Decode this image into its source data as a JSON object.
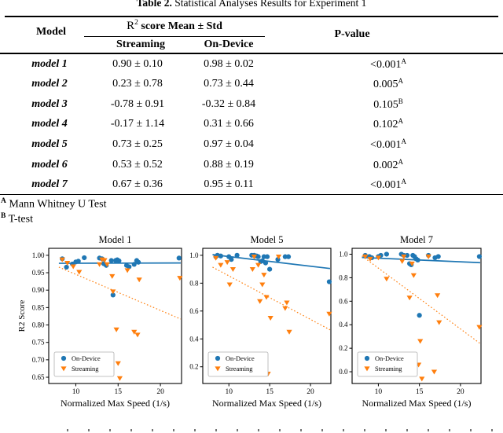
{
  "page": {
    "title_prefix": "Table 2.",
    "title_rest": " Statistical Analyses Results for Experiment 1"
  },
  "table": {
    "col_model": "Model",
    "r2_pre": "R",
    "r2_sup": "2",
    "r2_rest": " score Mean ± Std",
    "col_streaming": "Streaming",
    "col_ondevice": "On-Device",
    "col_pvalue": "P-value",
    "rows": [
      {
        "model": "model 1",
        "streaming": "0.90 ± 0.10",
        "ondevice": "0.98 ± 0.02",
        "pvalue": "<0.001",
        "pnote": "A"
      },
      {
        "model": "model 2",
        "streaming": "0.23 ± 0.78",
        "ondevice": "0.73 ± 0.44",
        "pvalue": "0.005",
        "pnote": "A"
      },
      {
        "model": "model 3",
        "streaming": "-0.78 ± 0.91",
        "ondevice": "-0.32 ± 0.84",
        "pvalue": "0.105",
        "pnote": "B"
      },
      {
        "model": "model 4",
        "streaming": "-0.17 ± 1.14",
        "ondevice": "0.31 ± 0.66",
        "pvalue": "0.102",
        "pnote": "A"
      },
      {
        "model": "model 5",
        "streaming": "0.73 ± 0.25",
        "ondevice": "0.97 ± 0.04",
        "pvalue": "<0.001",
        "pnote": "A"
      },
      {
        "model": "model 6",
        "streaming": "0.53 ± 0.52",
        "ondevice": "0.88 ± 0.19",
        "pvalue": "0.002",
        "pnote": "A"
      },
      {
        "model": "model 7",
        "streaming": "0.67 ± 0.36",
        "ondevice": "0.95 ± 0.11",
        "pvalue": "<0.001",
        "pnote": "A"
      }
    ],
    "footnotes": [
      {
        "sup": "A",
        "text": " Mann Whitney U Test"
      },
      {
        "sup": "B",
        "text": " T-test"
      }
    ]
  },
  "colors": {
    "on_device": "#1f77b4",
    "streaming": "#ff7f0e",
    "axis": "#000000",
    "legend_border": "#b0b0b0"
  },
  "chart_data": [
    {
      "type": "scatter",
      "title": "Model 1",
      "xlabel": "Normalized Max Speed (1/s)",
      "ylabel": "R2 Score",
      "xlim": [
        6.8,
        22.5
      ],
      "ylim": [
        0.632,
        1.02
      ],
      "xticks": [
        10,
        15,
        20
      ],
      "yticks": [
        1.0,
        0.95,
        0.9,
        0.85,
        0.8,
        0.75,
        0.7,
        0.65
      ],
      "ytick_labels": [
        "1.00",
        "0.95",
        "0.90",
        "0.85",
        "0.80",
        "0.75",
        "0.70",
        "0.65"
      ],
      "legend": {
        "position": "lower-left",
        "items": [
          {
            "label": "On-Device",
            "marker": "circle",
            "color": "#1f77b4"
          },
          {
            "label": "Streaming",
            "marker": "triangle-down",
            "color": "#ff7f0e"
          }
        ]
      },
      "series": [
        {
          "name": "On-Device",
          "marker": "circle",
          "color": "#1f77b4",
          "points": [
            [
              8.4,
              0.99
            ],
            [
              8.9,
              0.966
            ],
            [
              9.6,
              0.975
            ],
            [
              10.0,
              0.981
            ],
            [
              10.3,
              0.983
            ],
            [
              11.0,
              0.993
            ],
            [
              12.8,
              0.992
            ],
            [
              13.1,
              0.99
            ],
            [
              13.3,
              0.976
            ],
            [
              13.6,
              0.971
            ],
            [
              14.2,
              0.985
            ],
            [
              14.4,
              0.886
            ],
            [
              14.7,
              0.985
            ],
            [
              14.9,
              0.987
            ],
            [
              15.1,
              0.984
            ],
            [
              16.0,
              0.971
            ],
            [
              16.3,
              0.967
            ],
            [
              16.9,
              0.974
            ],
            [
              17.2,
              0.985
            ],
            [
              17.4,
              0.98
            ],
            [
              22.2,
              0.992
            ]
          ],
          "trend": {
            "style": "solid",
            "from": [
              8.0,
              0.977
            ],
            "to": [
              22.4,
              0.978
            ]
          }
        },
        {
          "name": "Streaming",
          "marker": "triangle-down",
          "color": "#ff7f0e",
          "points": [
            [
              8.4,
              0.988
            ],
            [
              9.0,
              0.978
            ],
            [
              9.7,
              0.968
            ],
            [
              10.4,
              0.952
            ],
            [
              12.8,
              0.974
            ],
            [
              13.1,
              0.988
            ],
            [
              13.4,
              0.986
            ],
            [
              13.7,
              0.974
            ],
            [
              14.3,
              0.94
            ],
            [
              14.4,
              0.896
            ],
            [
              14.8,
              0.787
            ],
            [
              15.0,
              0.69
            ],
            [
              15.2,
              0.647
            ],
            [
              16.1,
              0.957
            ],
            [
              16.9,
              0.78
            ],
            [
              17.3,
              0.772
            ],
            [
              17.5,
              0.93
            ],
            [
              22.3,
              0.935
            ]
          ],
          "trend": {
            "style": "dotted",
            "from": [
              8.0,
              0.966
            ],
            "to": [
              22.4,
              0.817
            ]
          }
        }
      ]
    },
    {
      "type": "scatter",
      "title": "Model 5",
      "xlabel": "Normalized Max Speed (1/s)",
      "ylabel": "",
      "xlim": [
        6.8,
        22.5
      ],
      "ylim": [
        0.08,
        1.05
      ],
      "xticks": [
        10,
        15,
        20
      ],
      "yticks": [
        1.0,
        0.8,
        0.6,
        0.4,
        0.2
      ],
      "ytick_labels": [
        "1.0",
        "0.8",
        "0.6",
        "0.4",
        "0.2"
      ],
      "legend": {
        "position": "lower-left",
        "items": [
          {
            "label": "On-Device",
            "marker": "circle",
            "color": "#1f77b4"
          },
          {
            "label": "Streaming",
            "marker": "triangle-down",
            "color": "#ff7f0e"
          }
        ]
      },
      "series": [
        {
          "name": "On-Device",
          "marker": "circle",
          "color": "#1f77b4",
          "points": [
            [
              8.4,
              0.99
            ],
            [
              8.6,
              1.0
            ],
            [
              9.0,
              0.995
            ],
            [
              10.0,
              0.99
            ],
            [
              10.3,
              0.97
            ],
            [
              11.0,
              1.0
            ],
            [
              12.8,
              1.0
            ],
            [
              13.1,
              1.0
            ],
            [
              13.4,
              0.995
            ],
            [
              13.6,
              0.99
            ],
            [
              13.9,
              0.955
            ],
            [
              14.1,
              0.96
            ],
            [
              14.3,
              0.99
            ],
            [
              14.5,
              0.945
            ],
            [
              14.7,
              0.99
            ],
            [
              15.0,
              0.9
            ],
            [
              16.0,
              0.97
            ],
            [
              16.9,
              0.99
            ],
            [
              17.3,
              0.99
            ],
            [
              22.3,
              0.81
            ]
          ],
          "trend": {
            "style": "solid",
            "from": [
              8.0,
              1.005
            ],
            "to": [
              22.4,
              0.905
            ]
          }
        },
        {
          "name": "Streaming",
          "marker": "triangle-down",
          "color": "#ff7f0e",
          "points": [
            [
              8.4,
              0.98
            ],
            [
              9.0,
              0.93
            ],
            [
              9.8,
              0.95
            ],
            [
              10.1,
              0.79
            ],
            [
              10.5,
              0.9
            ],
            [
              12.9,
              0.9
            ],
            [
              13.1,
              0.99
            ],
            [
              13.6,
              0.93
            ],
            [
              13.8,
              0.67
            ],
            [
              14.1,
              0.79
            ],
            [
              14.3,
              0.86
            ],
            [
              14.6,
              0.7
            ],
            [
              14.8,
              0.15
            ],
            [
              15.1,
              0.55
            ],
            [
              16.1,
              0.99
            ],
            [
              16.9,
              0.62
            ],
            [
              17.1,
              0.66
            ],
            [
              17.4,
              0.45
            ],
            [
              22.3,
              0.58
            ]
          ],
          "trend": {
            "style": "dotted",
            "from": [
              8.0,
              0.915
            ],
            "to": [
              22.4,
              0.465
            ]
          }
        }
      ]
    },
    {
      "type": "scatter",
      "title": "Model 7",
      "xlabel": "Normalized Max Speed (1/s)",
      "ylabel": "",
      "xlim": [
        6.8,
        22.5
      ],
      "ylim": [
        -0.1,
        1.05
      ],
      "xticks": [
        10,
        15,
        20
      ],
      "yticks": [
        1.0,
        0.8,
        0.6,
        0.4,
        0.2,
        0.0
      ],
      "ytick_labels": [
        "1.0",
        "0.8",
        "0.6",
        "0.4",
        "0.2",
        "0.0"
      ],
      "legend": {
        "position": "lower-left",
        "items": [
          {
            "label": "On-Device",
            "marker": "circle",
            "color": "#1f77b4"
          },
          {
            "label": "Streaming",
            "marker": "triangle-down",
            "color": "#ff7f0e"
          }
        ]
      },
      "series": [
        {
          "name": "On-Device",
          "marker": "circle",
          "color": "#1f77b4",
          "points": [
            [
              8.4,
              0.99
            ],
            [
              8.9,
              0.98
            ],
            [
              9.2,
              0.97
            ],
            [
              10.0,
              0.98
            ],
            [
              10.3,
              0.99
            ],
            [
              11.0,
              1.0
            ],
            [
              12.8,
              1.0
            ],
            [
              13.1,
              0.99
            ],
            [
              13.5,
              0.99
            ],
            [
              13.8,
              0.92
            ],
            [
              14.0,
              0.91
            ],
            [
              14.2,
              0.99
            ],
            [
              14.4,
              0.98
            ],
            [
              14.6,
              0.96
            ],
            [
              14.8,
              0.95
            ],
            [
              15.0,
              0.48
            ],
            [
              16.1,
              0.99
            ],
            [
              16.9,
              0.97
            ],
            [
              17.3,
              0.98
            ],
            [
              22.3,
              0.98
            ]
          ],
          "trend": {
            "style": "solid",
            "from": [
              8.0,
              0.972
            ],
            "to": [
              22.4,
              0.928
            ]
          }
        },
        {
          "name": "Streaming",
          "marker": "triangle-down",
          "color": "#ff7f0e",
          "points": [
            [
              8.4,
              0.98
            ],
            [
              9.0,
              0.96
            ],
            [
              10.0,
              0.97
            ],
            [
              11.0,
              0.79
            ],
            [
              12.9,
              0.94
            ],
            [
              13.1,
              0.98
            ],
            [
              13.8,
              0.63
            ],
            [
              14.1,
              0.92
            ],
            [
              14.3,
              0.82
            ],
            [
              14.9,
              0.06
            ],
            [
              15.1,
              0.26
            ],
            [
              15.3,
              -0.06
            ],
            [
              16.1,
              0.98
            ],
            [
              16.8,
              0.0
            ],
            [
              17.2,
              0.65
            ],
            [
              17.4,
              0.42
            ],
            [
              22.3,
              0.38
            ]
          ],
          "trend": {
            "style": "dotted",
            "from": [
              8.0,
              0.985
            ],
            "to": [
              22.4,
              0.24
            ]
          }
        }
      ]
    }
  ]
}
